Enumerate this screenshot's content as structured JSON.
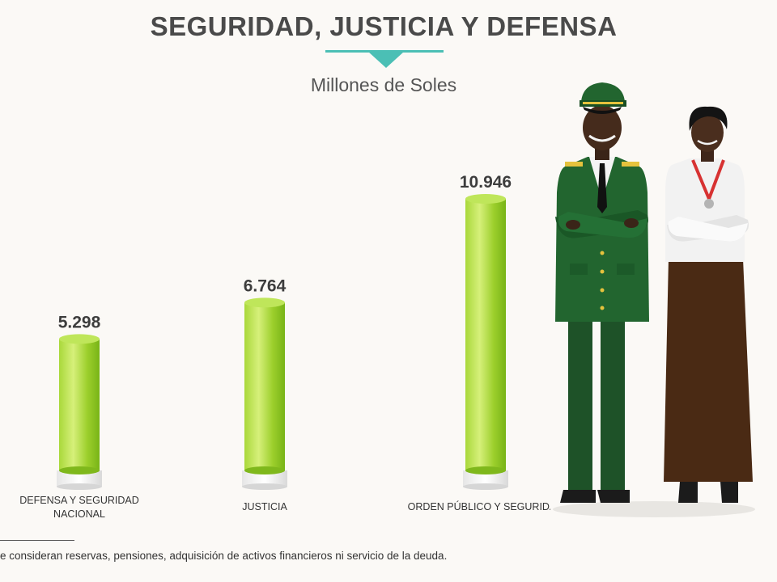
{
  "title": "SEGURIDAD, JUSTICIA Y DEFENSA",
  "subtitle": "Millones de Soles",
  "footnote": "e consideran reservas, pensiones, adquisición de activos financieros ni servicio de la deuda.",
  "colors": {
    "accent": "#4bbfb5",
    "bar_light": "#c9ea63",
    "bar_dark": "#7fc01c",
    "uniform_green": "#1e5e2c",
    "skirt_brown": "#4a2a14"
  },
  "illustration": {
    "icons": [
      "police-officer-icon",
      "woman-with-medal-icon"
    ]
  },
  "chart_data": {
    "type": "bar",
    "title": "SEGURIDAD, JUSTICIA Y DEFENSA",
    "subtitle": "Millones de Soles",
    "ylim": [
      0,
      12000
    ],
    "grid": false,
    "categories": [
      [
        "DEFENSA Y SEGURIDAD",
        "NACIONAL"
      ],
      [
        "JUSTICIA"
      ],
      [
        "ORDEN PÚBLICO Y SEGURIDAD"
      ]
    ],
    "values": [
      5298,
      6764,
      10946
    ],
    "value_labels": [
      "5.298",
      "6.764",
      "10.946"
    ]
  }
}
